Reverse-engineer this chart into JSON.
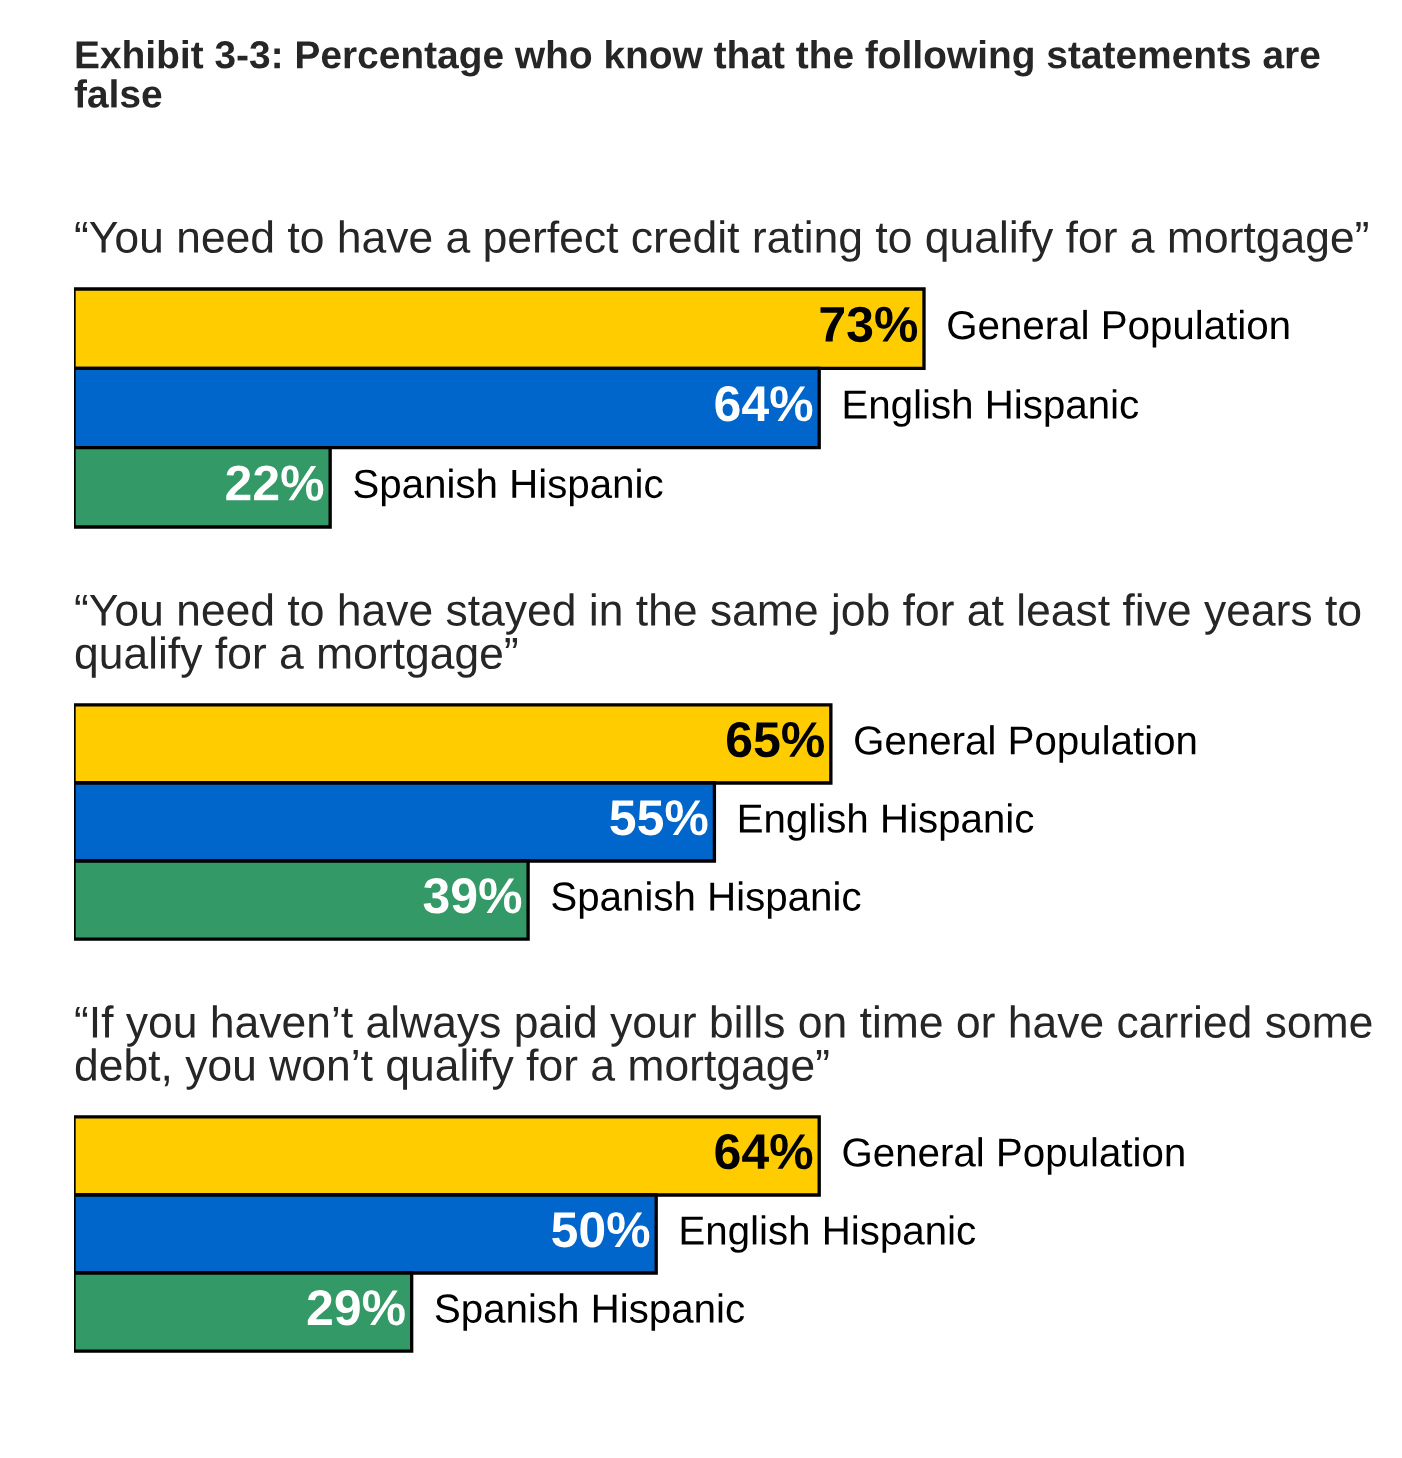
{
  "chart_data": [
    {
      "type": "bar",
      "orientation": "horizontal",
      "title": "Exhibit 3-3: Percentage who know that the following statements are false",
      "subtitle": "“You need to have a perfect credit rating to qualify for a mortgage”",
      "categories": [
        null
      ],
      "series": [
        {
          "name": "General Population",
          "color": "#ffcc00",
          "values": [
            73
          ],
          "value_labels": [
            "73%"
          ]
        },
        {
          "name": "English Hispanic",
          "color": "#0066cc",
          "values": [
            64
          ],
          "value_labels": [
            "64%"
          ]
        },
        {
          "name": "Spanish Hispanic",
          "color": "#339966",
          "values": [
            22
          ],
          "value_labels": [
            "22%"
          ]
        }
      ]
    },
    {
      "type": "bar",
      "orientation": "horizontal",
      "subtitle": "“You need to have stayed in the same job for at least five years to qualify for a mortgage”",
      "categories": [
        null
      ],
      "series": [
        {
          "name": "General Population",
          "color": "#ffcc00",
          "values": [
            65
          ],
          "value_labels": [
            "65%"
          ]
        },
        {
          "name": "English Hispanic",
          "color": "#0066cc",
          "values": [
            55
          ],
          "value_labels": [
            "55%"
          ]
        },
        {
          "name": "Spanish Hispanic",
          "color": "#339966",
          "values": [
            39
          ],
          "value_labels": [
            "39%"
          ]
        }
      ]
    },
    {
      "type": "bar",
      "orientation": "horizontal",
      "subtitle": "“If you haven’t always paid your bills on time or have carried some debt, you won’t qualify for a mortgage”",
      "categories": [
        null
      ],
      "series": [
        {
          "name": "General Population",
          "color": "#ffcc00",
          "values": [
            64
          ],
          "value_labels": [
            "64%"
          ]
        },
        {
          "name": "English Hispanic",
          "color": "#0066cc",
          "values": [
            50
          ],
          "value_labels": [
            "50%"
          ]
        },
        {
          "name": "Spanish Hispanic",
          "color": "#339966",
          "values": [
            29
          ],
          "value_labels": [
            "29%"
          ]
        }
      ]
    }
  ]
}
